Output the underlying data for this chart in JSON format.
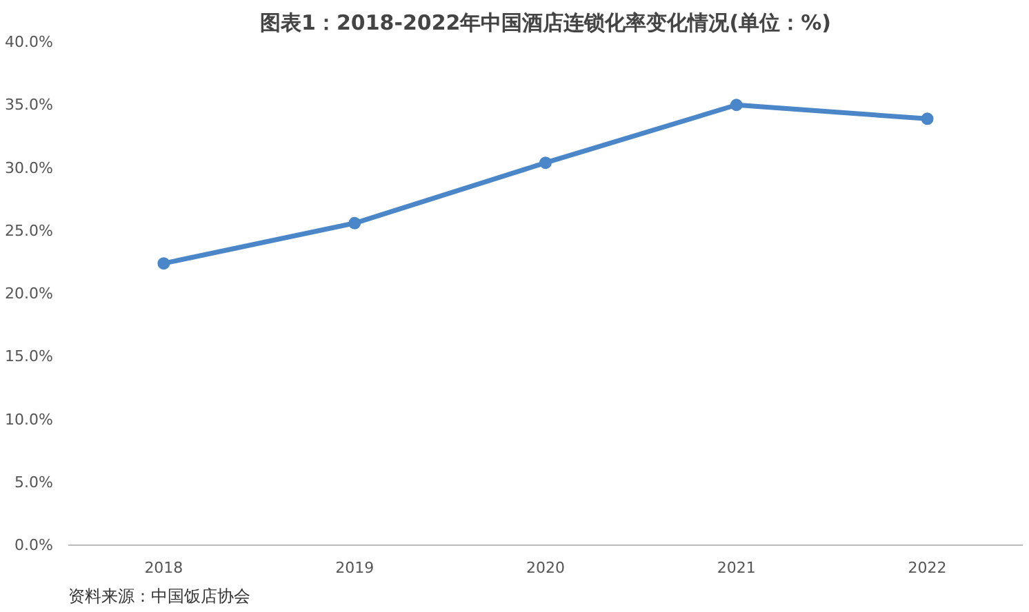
{
  "chart_data": {
    "type": "line",
    "title": "图表1：2018-2022年中国酒店连锁化率变化情况(单位：%)",
    "categories": [
      "2018",
      "2019",
      "2020",
      "2021",
      "2022"
    ],
    "series": [
      {
        "color": "#4a86c8",
        "values": [
          22.4,
          25.6,
          30.4,
          35.0,
          33.9
        ]
      }
    ],
    "ylim": [
      0,
      40
    ],
    "yticks": [
      {
        "value": 0,
        "label": "0.0%"
      },
      {
        "value": 5,
        "label": "5.0%"
      },
      {
        "value": 10,
        "label": "10.0%"
      },
      {
        "value": 15,
        "label": "15.0%"
      },
      {
        "value": 20,
        "label": "20.0%"
      },
      {
        "value": 25,
        "label": "25.0%"
      },
      {
        "value": 30,
        "label": "30.0%"
      },
      {
        "value": 35,
        "label": "35.0%"
      },
      {
        "value": 40,
        "label": "40.0%"
      }
    ],
    "grid": false,
    "marker": "circle",
    "line_style": "solid",
    "annotations": [
      "资料来源：中国饭店协会"
    ]
  }
}
